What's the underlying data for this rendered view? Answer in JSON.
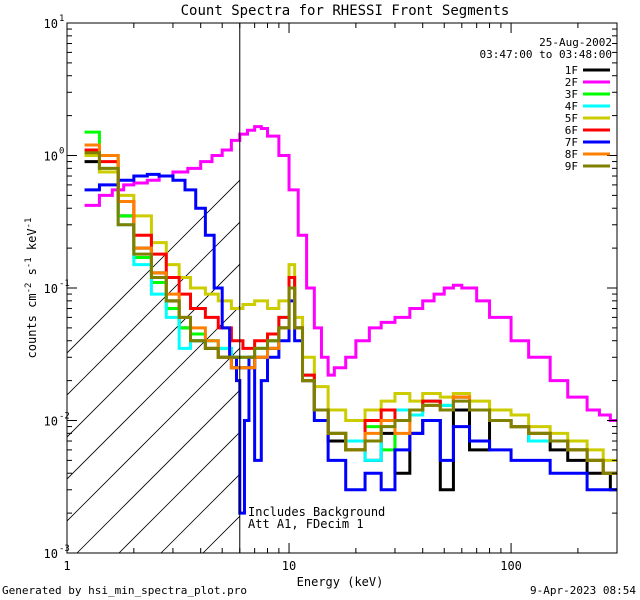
{
  "chart_data": {
    "type": "line",
    "title": "Count Spectra for RHESSI Front Segments",
    "xlabel": "Energy (keV)",
    "ylabel_parts": [
      "counts cm",
      "-2",
      " s",
      "-1",
      " keV",
      "-1"
    ],
    "xscale": "log",
    "yscale": "log",
    "xlim": [
      1,
      300
    ],
    "ylim": [
      0.001,
      10
    ],
    "xticks": [
      {
        "value": 1,
        "label": "1"
      },
      {
        "value": 10,
        "label": "10"
      },
      {
        "value": 100,
        "label": "100"
      }
    ],
    "yticks": [
      {
        "value": 0.001,
        "label_base": "10",
        "label_exp": "-3"
      },
      {
        "value": 0.01,
        "label_base": "10",
        "label_exp": "-2"
      },
      {
        "value": 0.1,
        "label_base": "10",
        "label_exp": "-1"
      },
      {
        "value": 1,
        "label_base": "10",
        "label_exp": "0"
      },
      {
        "value": 10,
        "label_base": "10",
        "label_exp": "1"
      }
    ],
    "date": "25-Aug-2002",
    "time_range": "03:47:00 to 03:48:00",
    "vline_energy": 6.0,
    "hatch_region": [
      1,
      6.0
    ],
    "annotations": [
      "Includes Background",
      "Att A1, FDecim 1"
    ],
    "series": [
      {
        "name": "1F",
        "color": "#000000",
        "x": [
          1.2,
          1.4,
          1.7,
          2.0,
          2.4,
          2.8,
          3.2,
          3.6,
          4.2,
          4.8,
          5.5,
          6.2,
          7.0,
          8.0,
          9.0,
          10.0,
          10.6,
          11.5,
          13,
          15,
          18,
          22,
          26,
          30,
          35,
          40,
          48,
          55,
          65,
          80,
          100,
          120,
          150,
          180,
          220,
          260,
          280
        ],
        "y": [
          0.9,
          0.75,
          0.35,
          0.2,
          0.13,
          0.08,
          0.05,
          0.04,
          0.035,
          0.03,
          0.025,
          0.025,
          0.03,
          0.035,
          0.05,
          0.1,
          0.05,
          0.02,
          0.012,
          0.007,
          0.006,
          0.005,
          0.008,
          0.004,
          0.008,
          0.01,
          0.003,
          0.012,
          0.006,
          0.01,
          0.009,
          0.007,
          0.006,
          0.005,
          0.004,
          0.004,
          0.003
        ]
      },
      {
        "name": "2F",
        "color": "#ff00ff",
        "x": [
          1.2,
          1.4,
          1.6,
          1.8,
          2.0,
          2.3,
          2.6,
          3.0,
          3.5,
          4.0,
          4.5,
          5.0,
          5.5,
          6.0,
          6.5,
          7.0,
          7.5,
          8.0,
          9.0,
          10,
          11,
          12,
          13,
          14,
          15,
          16,
          18,
          20,
          23,
          26,
          30,
          35,
          40,
          45,
          50,
          55,
          60,
          70,
          80,
          100,
          120,
          150,
          180,
          220,
          250,
          280,
          300
        ],
        "y": [
          0.42,
          0.5,
          0.55,
          0.6,
          0.62,
          0.65,
          0.7,
          0.75,
          0.8,
          0.9,
          1.0,
          1.1,
          1.3,
          1.45,
          1.55,
          1.65,
          1.6,
          1.4,
          1.0,
          0.55,
          0.25,
          0.1,
          0.05,
          0.03,
          0.022,
          0.025,
          0.03,
          0.04,
          0.05,
          0.055,
          0.06,
          0.07,
          0.08,
          0.09,
          0.1,
          0.105,
          0.1,
          0.08,
          0.06,
          0.04,
          0.03,
          0.02,
          0.015,
          0.012,
          0.011,
          0.01,
          0.01
        ]
      },
      {
        "name": "3F",
        "color": "#00ff00",
        "x": [
          1.2,
          1.4,
          1.7,
          2.0,
          2.4,
          2.8,
          3.2,
          3.6,
          4.2,
          4.8,
          5.5,
          6.2,
          7.0,
          8.0,
          9.0,
          10.0,
          10.6,
          11.5,
          13,
          15,
          18,
          22,
          26,
          30,
          35,
          40,
          48,
          55,
          65,
          80,
          100,
          120,
          150,
          180,
          220,
          260,
          280
        ],
        "y": [
          1.5,
          1.0,
          0.35,
          0.17,
          0.11,
          0.07,
          0.05,
          0.045,
          0.04,
          0.035,
          0.03,
          0.03,
          0.035,
          0.04,
          0.05,
          0.12,
          0.05,
          0.022,
          0.012,
          0.008,
          0.006,
          0.009,
          0.006,
          0.01,
          0.012,
          0.014,
          0.013,
          0.016,
          0.012,
          0.01,
          0.009,
          0.008,
          0.007,
          0.006,
          0.005,
          0.004,
          0.004
        ]
      },
      {
        "name": "4F",
        "color": "#00ffff",
        "x": [
          1.2,
          1.4,
          1.7,
          2.0,
          2.4,
          2.8,
          3.2,
          3.6,
          4.2,
          4.8,
          5.5,
          6.2,
          7.0,
          8.0,
          9.0,
          10.0,
          10.6,
          11.5,
          13,
          15,
          18,
          22,
          26,
          30,
          35,
          40,
          48,
          55,
          65,
          80,
          100,
          120,
          150,
          180,
          220,
          260,
          280
        ],
        "y": [
          1.1,
          0.8,
          0.3,
          0.15,
          0.09,
          0.06,
          0.035,
          0.04,
          0.04,
          0.035,
          0.03,
          0.03,
          0.035,
          0.04,
          0.06,
          0.1,
          0.05,
          0.022,
          0.012,
          0.008,
          0.007,
          0.005,
          0.009,
          0.012,
          0.011,
          0.014,
          0.013,
          0.015,
          0.012,
          0.01,
          0.009,
          0.007,
          0.007,
          0.006,
          0.005,
          0.004,
          0.004
        ]
      },
      {
        "name": "5F",
        "color": "#cccc00",
        "x": [
          1.2,
          1.4,
          1.7,
          2.0,
          2.4,
          2.8,
          3.2,
          3.6,
          4.2,
          4.8,
          5.5,
          6.2,
          7.0,
          8.0,
          9.0,
          10.0,
          10.6,
          11.5,
          13,
          15,
          18,
          22,
          26,
          30,
          35,
          40,
          48,
          55,
          65,
          80,
          100,
          120,
          150,
          180,
          220,
          260,
          280
        ],
        "y": [
          1.0,
          0.75,
          0.5,
          0.35,
          0.22,
          0.15,
          0.12,
          0.1,
          0.09,
          0.08,
          0.07,
          0.075,
          0.08,
          0.07,
          0.08,
          0.15,
          0.06,
          0.03,
          0.018,
          0.012,
          0.01,
          0.012,
          0.014,
          0.016,
          0.014,
          0.016,
          0.015,
          0.016,
          0.014,
          0.012,
          0.011,
          0.009,
          0.008,
          0.007,
          0.006,
          0.005,
          0.005
        ]
      },
      {
        "name": "6F",
        "color": "#ff0000",
        "x": [
          1.2,
          1.4,
          1.7,
          2.0,
          2.4,
          2.8,
          3.2,
          3.6,
          4.2,
          4.8,
          5.5,
          6.2,
          7.0,
          8.0,
          9.0,
          10.0,
          10.6,
          11.5,
          13,
          15,
          18,
          22,
          26,
          30,
          35,
          40,
          48,
          55,
          65,
          80,
          100,
          120,
          150,
          180,
          220,
          260,
          280
        ],
        "y": [
          1.1,
          0.9,
          0.45,
          0.25,
          0.18,
          0.12,
          0.09,
          0.07,
          0.06,
          0.05,
          0.04,
          0.035,
          0.04,
          0.045,
          0.06,
          0.12,
          0.05,
          0.022,
          0.012,
          0.008,
          0.006,
          0.01,
          0.012,
          0.01,
          0.012,
          0.014,
          0.012,
          0.015,
          0.012,
          0.01,
          0.009,
          0.008,
          0.007,
          0.006,
          0.005,
          0.004,
          0.004
        ]
      },
      {
        "name": "7F",
        "color": "#0000ff",
        "x": [
          1.2,
          1.4,
          1.7,
          2.0,
          2.3,
          2.6,
          3.0,
          3.4,
          3.8,
          4.2,
          4.6,
          5.0,
          5.4,
          5.8,
          6.0,
          6.3,
          6.6,
          7.0,
          7.5,
          8.0,
          9.0,
          10.0,
          10.6,
          11.5,
          13,
          15,
          18,
          22,
          26,
          30,
          35,
          40,
          48,
          55,
          65,
          80,
          100,
          120,
          150,
          180,
          220,
          260,
          280
        ],
        "y": [
          0.55,
          0.6,
          0.65,
          0.7,
          0.72,
          0.7,
          0.65,
          0.55,
          0.4,
          0.25,
          0.1,
          0.05,
          0.03,
          0.02,
          0.002,
          0.01,
          0.03,
          0.005,
          0.02,
          0.03,
          0.04,
          0.08,
          0.04,
          0.02,
          0.01,
          0.005,
          0.003,
          0.004,
          0.003,
          0.006,
          0.008,
          0.01,
          0.005,
          0.009,
          0.007,
          0.006,
          0.005,
          0.005,
          0.004,
          0.004,
          0.003,
          0.003,
          0.003
        ]
      },
      {
        "name": "8F",
        "color": "#ff8000",
        "x": [
          1.2,
          1.4,
          1.7,
          2.0,
          2.4,
          2.8,
          3.2,
          3.6,
          4.2,
          4.8,
          5.5,
          6.2,
          7.0,
          8.0,
          9.0,
          10.0,
          10.6,
          11.5,
          13,
          15,
          18,
          22,
          26,
          30,
          35,
          40,
          48,
          55,
          65,
          80,
          100,
          120,
          150,
          180,
          220,
          260,
          280
        ],
        "y": [
          1.2,
          1.0,
          0.45,
          0.2,
          0.13,
          0.09,
          0.06,
          0.05,
          0.04,
          0.03,
          0.025,
          0.025,
          0.03,
          0.035,
          0.05,
          0.1,
          0.05,
          0.02,
          0.012,
          0.008,
          0.006,
          0.008,
          0.01,
          0.008,
          0.012,
          0.013,
          0.012,
          0.015,
          0.012,
          0.01,
          0.009,
          0.008,
          0.007,
          0.006,
          0.005,
          0.004,
          0.004
        ]
      },
      {
        "name": "9F",
        "color": "#808000",
        "x": [
          1.2,
          1.4,
          1.7,
          2.0,
          2.4,
          2.8,
          3.2,
          3.6,
          4.2,
          4.8,
          5.5,
          6.2,
          7.0,
          8.0,
          9.0,
          10.0,
          10.6,
          11.5,
          13,
          15,
          18,
          22,
          26,
          30,
          35,
          40,
          48,
          55,
          65,
          80,
          100,
          120,
          150,
          180,
          220,
          260,
          280
        ],
        "y": [
          1.05,
          0.8,
          0.3,
          0.18,
          0.12,
          0.08,
          0.06,
          0.04,
          0.035,
          0.03,
          0.03,
          0.03,
          0.035,
          0.04,
          0.05,
          0.1,
          0.05,
          0.02,
          0.012,
          0.008,
          0.006,
          0.007,
          0.009,
          0.01,
          0.012,
          0.013,
          0.012,
          0.014,
          0.012,
          0.01,
          0.009,
          0.008,
          0.007,
          0.006,
          0.005,
          0.004,
          0.004
        ]
      }
    ]
  },
  "footer": {
    "generated_by": "Generated by hsi_min_spectra_plot.pro",
    "timestamp": "9-Apr-2023 08:54"
  }
}
